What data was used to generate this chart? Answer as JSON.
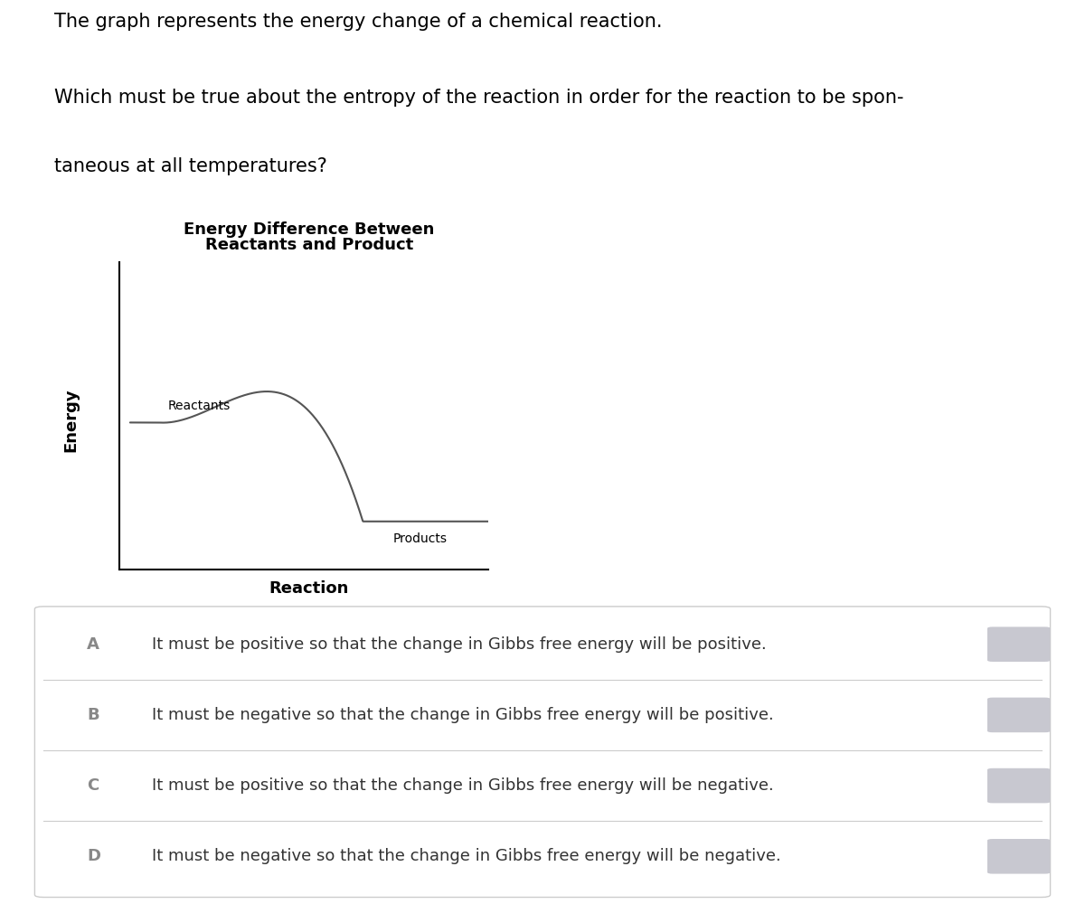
{
  "title_line1": "The graph represents the energy change of a chemical reaction.",
  "question_line1": "Which must be true about the entropy of the reaction in order for the reaction to be spon-",
  "question_line2": "taneous at all temperatures?",
  "chart_title_line1": "Energy Difference Between",
  "chart_title_line2": "Reactants and Product",
  "xlabel": "Reaction",
  "ylabel": "Energy",
  "reactants_label": "Reactants",
  "products_label": "Products",
  "options": [
    {
      "letter": "A",
      "text": "It must be positive so that the change in Gibbs free energy will be positive."
    },
    {
      "letter": "B",
      "text": "It must be negative so that the change in Gibbs free energy will be positive."
    },
    {
      "letter": "C",
      "text": "It must be positive so that the change in Gibbs free energy will be negative."
    },
    {
      "letter": "D",
      "text": "It must be negative so that the change in Gibbs free energy will be negative."
    }
  ],
  "bg_color": "#ffffff",
  "text_color": "#000000",
  "option_letter_color": "#888888",
  "option_text_color": "#333333",
  "chart_line_color": "#555555",
  "axis_line_color": "#000000",
  "option_box_border_color": "#cccccc",
  "option_box_bg_color": "#ffffff",
  "radio_color": "#c8c8d0",
  "reactant_level": 0.55,
  "product_level": 0.18,
  "peak_level": 1.0
}
